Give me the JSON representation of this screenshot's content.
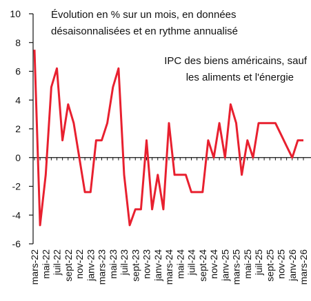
{
  "chart_data": {
    "type": "line",
    "annotations": [
      [
        "Évolution en % sur un mois, en données",
        "désaisonnalisées et en rythme annualisé"
      ],
      [
        "IPC des biens américains, sauf",
        "les aliments et l'énergie"
      ]
    ],
    "categories": [
      "mars-22",
      null,
      "mai-22",
      null,
      "juil-22",
      null,
      "sept-22",
      null,
      "nov-22",
      null,
      "janv-23",
      null,
      "mars-23",
      null,
      "mai-23",
      null,
      "juil-23",
      null,
      "sept-23",
      null,
      "nov-23",
      null,
      "janv-24",
      null,
      "mars-24",
      null,
      "mai-24",
      null,
      "juil-24",
      null,
      "sept-24",
      null,
      "nov-24",
      null,
      "janv-25",
      null,
      "mars-25",
      null,
      "mai-25",
      null,
      "juil-25",
      null,
      "sept-25",
      null,
      "nov-25",
      null,
      "janv-26",
      null,
      "mars-26"
    ],
    "values": [
      7.5,
      -4.7,
      -1.2,
      4.9,
      6.2,
      1.2,
      3.7,
      2.4,
      0,
      -2.4,
      -2.4,
      1.2,
      1.2,
      2.4,
      4.9,
      6.2,
      -1.2,
      -4.7,
      -3.6,
      -3.6,
      1.2,
      -3.6,
      -1.2,
      -3.6,
      2.4,
      -1.2,
      -1.2,
      -1.2,
      -2.4,
      -2.4,
      -2.4,
      1.2,
      0,
      2.4,
      0,
      3.7,
      2.4,
      -1.2,
      1.2,
      0,
      2.4,
      2.4,
      2.4,
      2.4,
      1.6,
      0.8,
      0,
      1.2,
      1.2
    ],
    "color": "#e8202f",
    "ylim": [
      -6,
      10
    ],
    "yticks": [
      -6,
      -4,
      -2,
      0,
      2,
      4,
      6,
      8,
      10
    ]
  }
}
